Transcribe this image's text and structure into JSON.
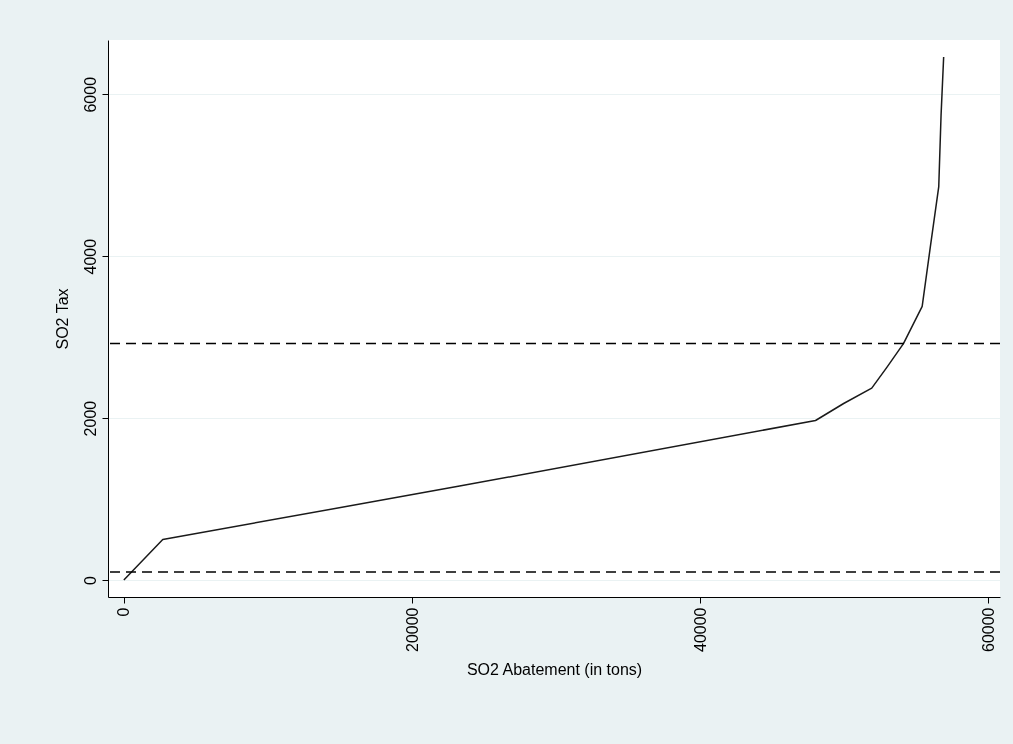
{
  "chart_data": {
    "type": "line",
    "xlabel": "SO2 Abatement (in tons)",
    "ylabel": "SO2 Tax",
    "x": [
      0,
      2700,
      23300,
      48000,
      49950,
      51900,
      52960,
      54100,
      55400,
      55970,
      56550,
      56710,
      56890
    ],
    "series": [
      {
        "color": "#1a1a1a",
        "values": [
          0,
          500,
          1160,
          1970,
          2180,
          2370,
          2630,
          2920,
          3380,
          4120,
          4860,
          5740,
          6460
        ]
      }
    ],
    "xlim": [
      -1100,
      60800
    ],
    "ylim": [
      -210,
      6670
    ],
    "xticks": [
      0,
      20000,
      40000,
      60000
    ],
    "yticks": [
      0,
      2000,
      4000,
      6000
    ],
    "grid": "y",
    "line_style": "solid",
    "marker": "none",
    "ref_lines": [
      {
        "axis": "y",
        "value": 2920,
        "line_style": "dashed",
        "color": "#000000"
      },
      {
        "axis": "y",
        "value": 100,
        "line_style": "dashed",
        "color": "#000000"
      }
    ]
  }
}
